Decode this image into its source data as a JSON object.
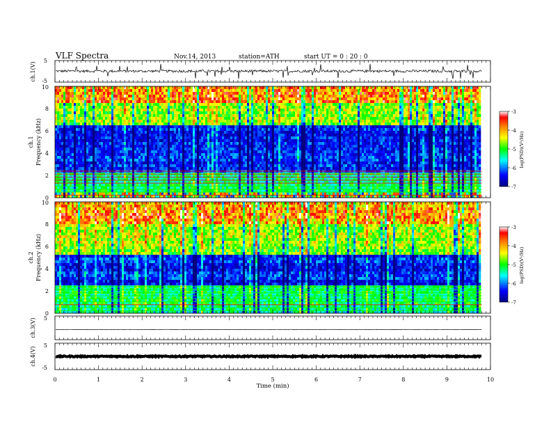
{
  "header": {
    "title": "VLF  Spectra",
    "date": "Nov.14, 2013",
    "station": "station=ATH",
    "start": "start  UT =   0  : 20 : 0"
  },
  "chart_data": [
    {
      "type": "line",
      "panel": "ch1-waveform",
      "ylabel": "ch.1(V)",
      "ylim": [
        -5,
        5
      ],
      "yticks": [
        "5",
        "-5"
      ],
      "xlim": [
        0,
        10
      ],
      "x_end_data": 9.8,
      "baseline": 0,
      "noise_amplitude_range": [
        -0.5,
        0.7
      ],
      "line_color": "#000000"
    },
    {
      "type": "heatmap",
      "panel": "ch1-spectrogram",
      "ylabel": "ch.1",
      "ylabel2": "Frequency (kHz)",
      "ylim": [
        0,
        10
      ],
      "yticks": [
        "0",
        "2",
        "4",
        "6",
        "8",
        "10"
      ],
      "xlim": [
        0,
        10
      ],
      "x_end_data": 9.8,
      "colorbar": {
        "label": "log(PSD)(V²/Hz)",
        "range": [
          -7,
          -3
        ],
        "ticks": [
          "-3",
          "-4",
          "-5",
          "-6",
          "-7"
        ],
        "colors": [
          "#000080",
          "#0000ff",
          "#00ffff",
          "#00ff00",
          "#ffff00",
          "#ff8000",
          "#ff0000",
          "#ffffff"
        ]
      },
      "bands_khz": [
        {
          "range": [
            0,
            0.5
          ],
          "level": "mixed"
        },
        {
          "range": [
            0.5,
            2.2
          ],
          "level": "cyan-green"
        },
        {
          "range": [
            2.2,
            6.5
          ],
          "level": "blue"
        },
        {
          "range": [
            6.5,
            8.5
          ],
          "level": "green-yellow"
        },
        {
          "range": [
            8.5,
            10
          ],
          "level": "yellow-red"
        }
      ]
    },
    {
      "type": "heatmap",
      "panel": "ch2-spectrogram",
      "ylabel": "ch.2",
      "ylabel2": "Frequency (kHz)",
      "ylim": [
        0,
        10
      ],
      "yticks": [
        "0",
        "2",
        "4",
        "6",
        "8",
        "10"
      ],
      "xlim": [
        0,
        10
      ],
      "x_end_data": 9.8,
      "colorbar": {
        "label": "log(PSD)(V²/Hz)",
        "range": [
          -7,
          -3
        ],
        "ticks": [
          "-3",
          "-4",
          "-5",
          "-6",
          "-7"
        ],
        "colors": [
          "#000080",
          "#0000ff",
          "#00ffff",
          "#00ff00",
          "#ffff00",
          "#ff8000",
          "#ff0000",
          "#ffffff"
        ]
      },
      "bands_khz": [
        {
          "range": [
            0,
            2.5
          ],
          "level": "cyan-green"
        },
        {
          "range": [
            2.5,
            5.2
          ],
          "level": "blue"
        },
        {
          "range": [
            5.2,
            8.0
          ],
          "level": "green-yellow"
        },
        {
          "range": [
            8.0,
            10
          ],
          "level": "yellow-red"
        }
      ]
    },
    {
      "type": "line",
      "panel": "ch3-waveform",
      "ylabel": "ch.3(V)",
      "ylim": [
        -5,
        5
      ],
      "yticks": [
        "5"
      ],
      "xlim": [
        0,
        10
      ],
      "x_end_data": 9.8,
      "baseline": -0.7,
      "noise_amplitude_range": [
        -0.05,
        0.05
      ],
      "line_color": "#000000"
    },
    {
      "type": "line",
      "panel": "ch4-waveform",
      "ylabel": "ch.4(V)",
      "ylim": [
        -5,
        5
      ],
      "yticks": [
        "5",
        "-5"
      ],
      "xlim": [
        0,
        10
      ],
      "x_end_data": 9.8,
      "baseline": 0,
      "noise_amplitude_range": [
        -0.2,
        0.2
      ],
      "line_color": "#000000"
    }
  ],
  "xaxis": {
    "label": "Time  (min)",
    "ticks": [
      "0",
      "1",
      "2",
      "3",
      "4",
      "5",
      "6",
      "7",
      "8",
      "9",
      "10"
    ]
  }
}
